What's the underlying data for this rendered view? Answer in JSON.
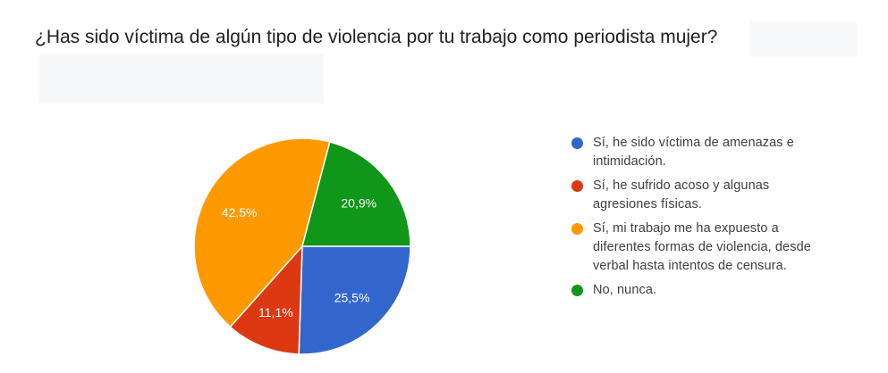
{
  "title": "¿Has sido víctima de algún tipo de violencia por tu trabajo como periodista mujer?",
  "chart_data": {
    "type": "pie",
    "categories": [
      "Sí, he sido víctima de amenazas e intimidación.",
      "Sí, he sufrido acoso y algunas agresiones físicas.",
      "Sí, mi trabajo me ha expuesto a diferentes formas de violencia, desde verbal hasta intentos de censura.",
      "No, nunca."
    ],
    "values": [
      25.5,
      11.1,
      42.5,
      20.9
    ],
    "labels": [
      "25,5%",
      "11,1%",
      "42,5%",
      "20,9%"
    ],
    "colors": [
      "#3366cc",
      "#dc3912",
      "#ff9900",
      "#109618"
    ],
    "legend_position": "right"
  },
  "legend": [
    {
      "line1": "Sí, he sido víctima de amenazas e",
      "line2": "intimidación.",
      "line3": "",
      "color": "#3366cc"
    },
    {
      "line1": "Sí, he sufrido acoso y algunas",
      "line2": "agresiones físicas.",
      "line3": "",
      "color": "#dc3912"
    },
    {
      "line1": "Sí, mi trabajo me ha expuesto a",
      "line2": "diferentes formas de violencia, desde",
      "line3": "verbal hasta intentos de censura.",
      "color": "#ff9900"
    },
    {
      "line1": "No, nunca.",
      "line2": "",
      "line3": "",
      "color": "#109618"
    }
  ]
}
